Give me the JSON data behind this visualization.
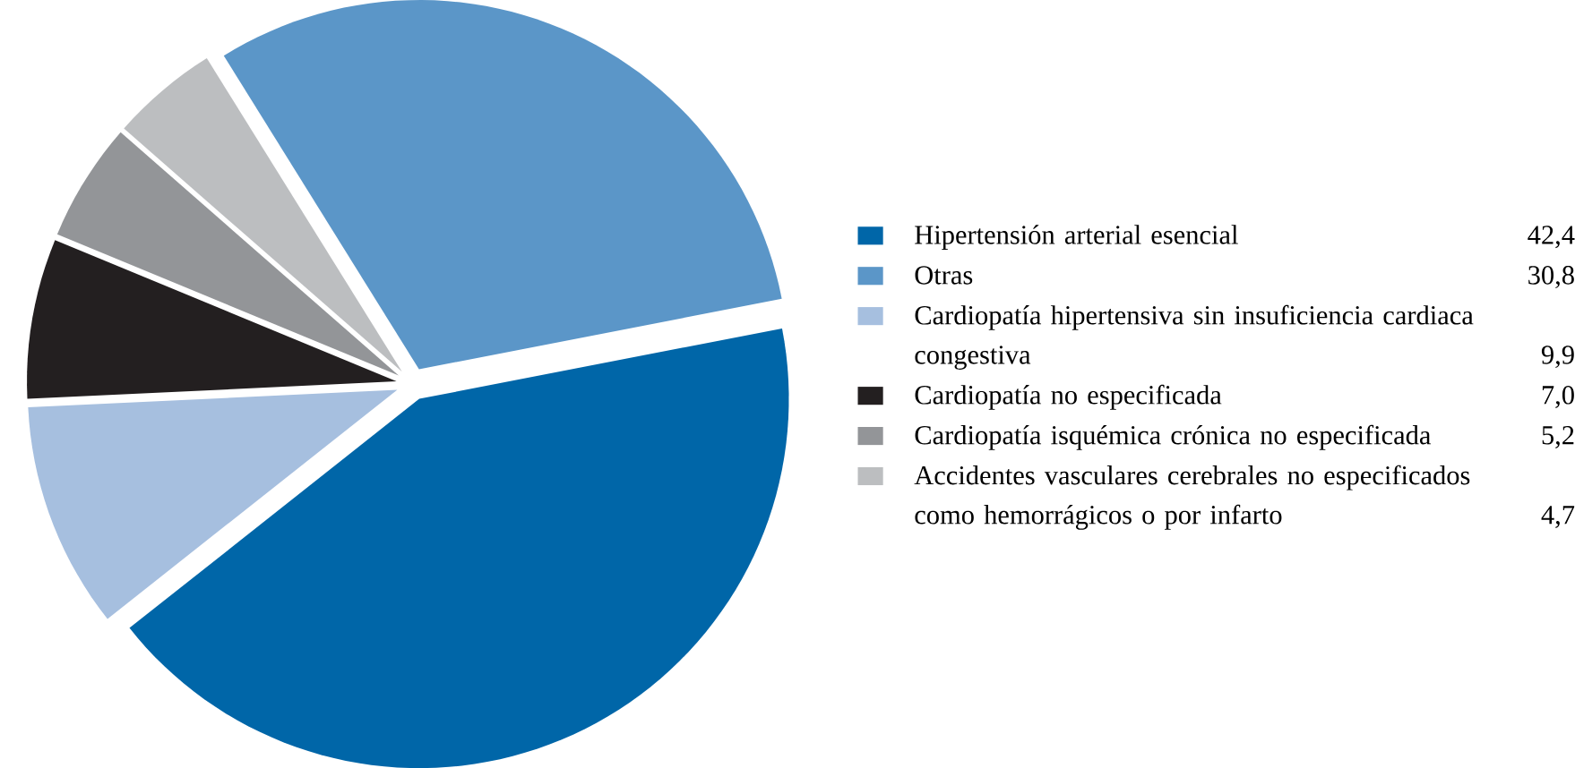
{
  "chart_data": {
    "type": "pie",
    "categories": [
      "Hipertensión arterial esencial",
      "Otras",
      "Cardiopatía hipertensiva sin insuficiencia cardiaca congestiva",
      "Cardiopatía no especificada",
      "Cardiopatía  isquémica crónica no especificada",
      "Accidentes vasculares cerebrales no especificados como hemorrágicos o por infarto"
    ],
    "values": [
      42.4,
      30.8,
      9.9,
      7.0,
      5.2,
      4.7
    ],
    "value_labels": [
      "42,4",
      "30,8",
      "9,9",
      "7,0",
      "5,2",
      "4,7"
    ],
    "colors": [
      "#0066a8",
      "#5b96c8",
      "#a6bfdf",
      "#231f20",
      "#939598",
      "#bcbec0"
    ],
    "legend": "right"
  }
}
